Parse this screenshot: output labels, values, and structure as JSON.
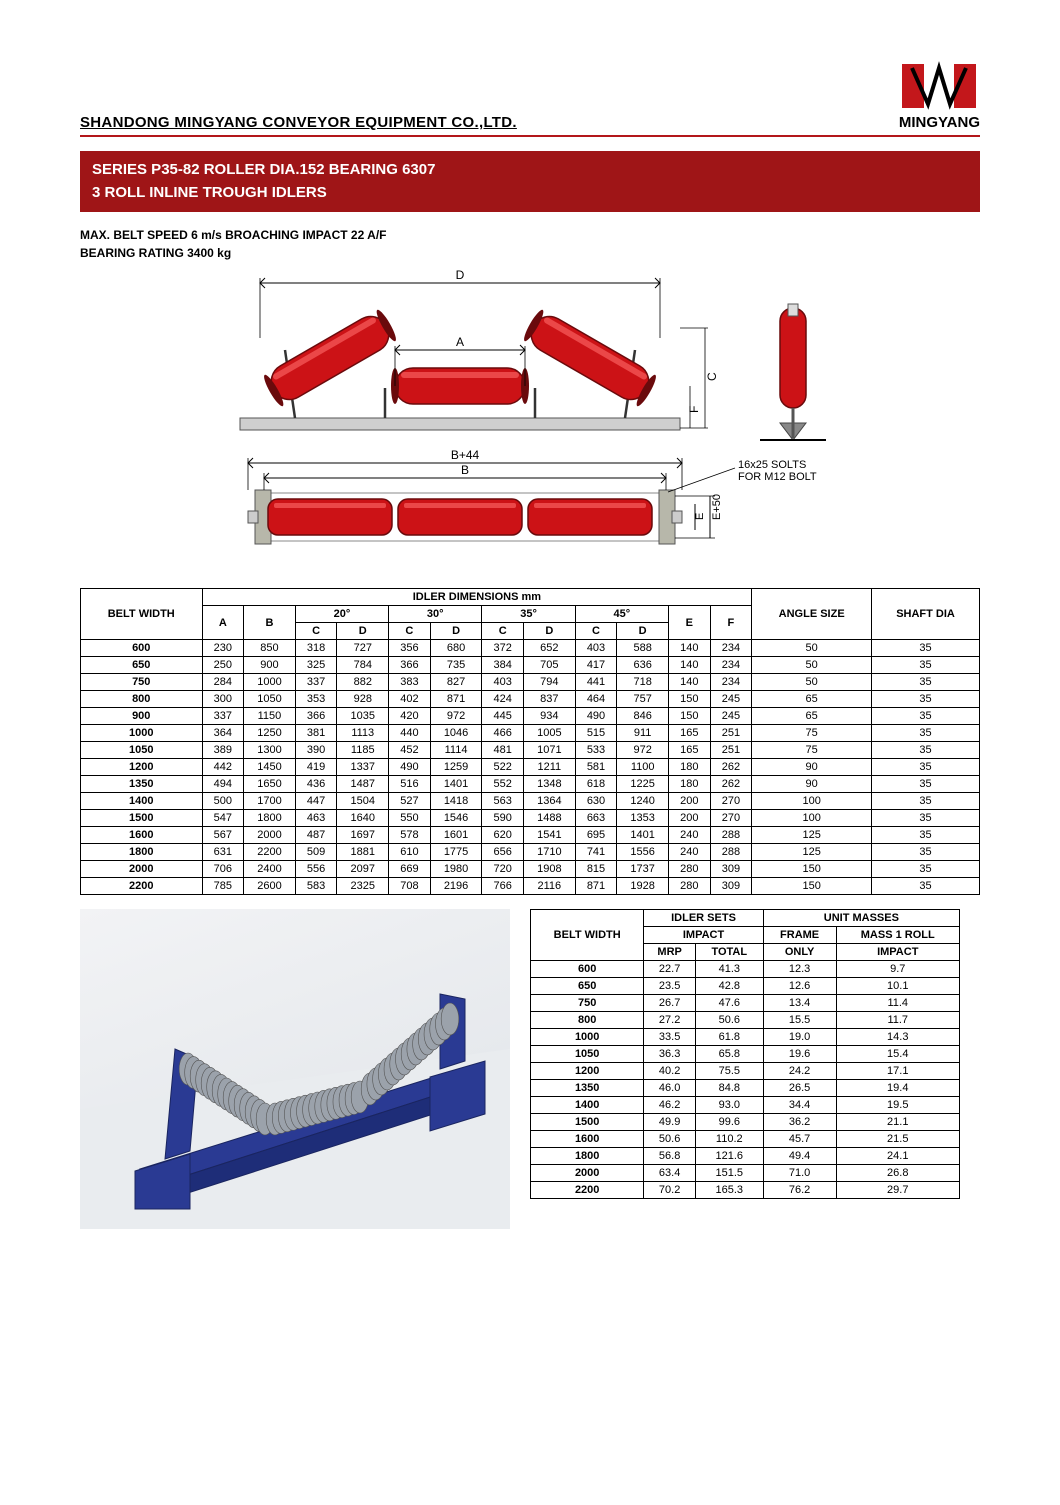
{
  "company": "SHANDONG MINGYANG CONVEYOR EQUIPMENT CO.,LTD.",
  "brand": "MINGYANG",
  "title_line1": "SERIES P35-82 ROLLER DIA.152 BEARING 6307",
  "title_line2": "3 ROLL INLINE TROUGH IDLERS",
  "spec_line1": "MAX. BELT SPEED 6 m/s BROACHING IMPACT 22 A/F",
  "spec_line2": "BEARING RATING 3400 kg",
  "diagram_labels": {
    "D": "D",
    "A": "A",
    "C": "C",
    "F": "F",
    "B44": "B+44",
    "B": "B",
    "E50": "E+50",
    "E": "E",
    "slots": "16x25 SOLTS\nFOR M12 BOLT"
  },
  "diagram_colors": {
    "roller_fill": "#cc1216",
    "roller_stroke": "#6a0a0c",
    "base_fill": "#cfcfcf",
    "base_stroke": "#555",
    "dim_color": "#000"
  },
  "table1": {
    "header_belt": "BELT WIDTH",
    "header_idler": "IDLER DIMENSIONS mm",
    "header_angle": "ANGLE SIZE",
    "header_shaft": "SHAFT DIA",
    "angles": [
      "20°",
      "30°",
      "35°",
      "45°"
    ],
    "cols_ab": [
      "A",
      "B"
    ],
    "cols_cd": [
      "C",
      "D"
    ],
    "cols_ef": [
      "E",
      "F"
    ],
    "rows": [
      [
        "600",
        230,
        850,
        318,
        727,
        356,
        680,
        372,
        652,
        403,
        588,
        140,
        234,
        50,
        35
      ],
      [
        "650",
        250,
        900,
        325,
        784,
        366,
        735,
        384,
        705,
        417,
        636,
        140,
        234,
        50,
        35
      ],
      [
        "750",
        284,
        1000,
        337,
        882,
        383,
        827,
        403,
        794,
        441,
        718,
        140,
        234,
        50,
        35
      ],
      [
        "800",
        300,
        1050,
        353,
        928,
        402,
        871,
        424,
        837,
        464,
        757,
        150,
        245,
        65,
        35
      ],
      [
        "900",
        337,
        1150,
        366,
        1035,
        420,
        972,
        445,
        934,
        490,
        846,
        150,
        245,
        65,
        35
      ],
      [
        "1000",
        364,
        1250,
        381,
        1113,
        440,
        1046,
        466,
        1005,
        515,
        911,
        165,
        251,
        75,
        35
      ],
      [
        "1050",
        389,
        1300,
        390,
        1185,
        452,
        1114,
        481,
        1071,
        533,
        972,
        165,
        251,
        75,
        35
      ],
      [
        "1200",
        442,
        1450,
        419,
        1337,
        490,
        1259,
        522,
        1211,
        581,
        1100,
        180,
        262,
        90,
        35
      ],
      [
        "1350",
        494,
        1650,
        436,
        1487,
        516,
        1401,
        552,
        1348,
        618,
        1225,
        180,
        262,
        90,
        35
      ],
      [
        "1400",
        500,
        1700,
        447,
        1504,
        527,
        1418,
        563,
        1364,
        630,
        1240,
        200,
        270,
        100,
        35
      ],
      [
        "1500",
        547,
        1800,
        463,
        1640,
        550,
        1546,
        590,
        1488,
        663,
        1353,
        200,
        270,
        100,
        35
      ],
      [
        "1600",
        567,
        2000,
        487,
        1697,
        578,
        1601,
        620,
        1541,
        695,
        1401,
        240,
        288,
        125,
        35
      ],
      [
        "1800",
        631,
        2200,
        509,
        1881,
        610,
        1775,
        656,
        1710,
        741,
        1556,
        240,
        288,
        125,
        35
      ],
      [
        "2000",
        706,
        2400,
        556,
        2097,
        669,
        1980,
        720,
        1908,
        815,
        1737,
        280,
        309,
        150,
        35
      ],
      [
        "2200",
        785,
        2600,
        583,
        2325,
        708,
        2196,
        766,
        2116,
        871,
        1928,
        280,
        309,
        150,
        35
      ]
    ]
  },
  "table2": {
    "header_belt": "BELT WIDTH",
    "header_sets": "IDLER SETS",
    "header_masses": "UNIT MASSES",
    "header_impact": "IMPACT",
    "header_frame": "FRAME",
    "header_mass1": "MASS 1 ROLL",
    "header_mrp": "MRP",
    "header_total": "TOTAL",
    "header_only": "ONLY",
    "header_impact2": "IMPACT",
    "rows": [
      [
        "600",
        "22.7",
        "41.3",
        "12.3",
        "9.7"
      ],
      [
        "650",
        "23.5",
        "42.8",
        "12.6",
        "10.1"
      ],
      [
        "750",
        "26.7",
        "47.6",
        "13.4",
        "11.4"
      ],
      [
        "800",
        "27.2",
        "50.6",
        "15.5",
        "11.7"
      ],
      [
        "1000",
        "33.5",
        "61.8",
        "19.0",
        "14.3"
      ],
      [
        "1050",
        "36.3",
        "65.8",
        "19.6",
        "15.4"
      ],
      [
        "1200",
        "40.2",
        "75.5",
        "24.2",
        "17.1"
      ],
      [
        "1350",
        "46.0",
        "84.8",
        "26.5",
        "19.4"
      ],
      [
        "1400",
        "46.2",
        "93.0",
        "34.4",
        "19.5"
      ],
      [
        "1500",
        "49.9",
        "99.6",
        "36.2",
        "21.1"
      ],
      [
        "1600",
        "50.6",
        "110.2",
        "45.7",
        "21.5"
      ],
      [
        "1800",
        "56.8",
        "121.6",
        "49.4",
        "24.1"
      ],
      [
        "2000",
        "63.4",
        "151.5",
        "71.0",
        "26.8"
      ],
      [
        "2200",
        "70.2",
        "165.3",
        "76.2",
        "29.7"
      ]
    ]
  },
  "render_colors": {
    "frame": "#2a3a93",
    "roller": "#9ba2ab",
    "floor": "#e9ecef"
  }
}
